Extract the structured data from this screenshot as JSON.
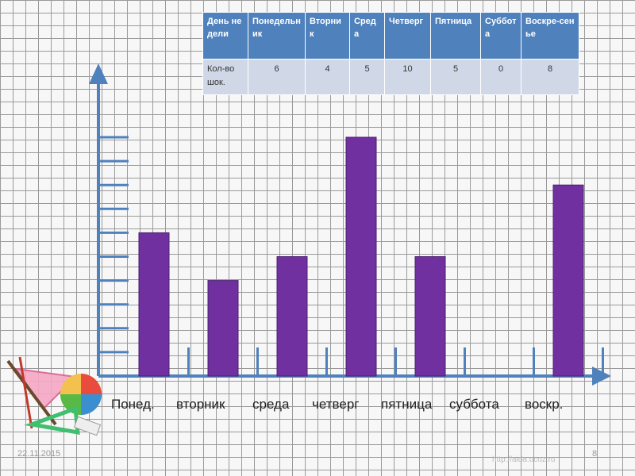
{
  "table": {
    "headers": [
      "День недели",
      "Понедельник",
      "Вторник",
      "Среда",
      "Четверг",
      "Пятница",
      "Суббота",
      "Воскре-сенье"
    ],
    "row_label": "Кол-во шок.",
    "values": [
      "6",
      "4",
      "5",
      "10",
      "5",
      "0",
      "8"
    ]
  },
  "colors": {
    "bar": "#7030a0",
    "axis": "#4f81bd",
    "table_header": "#4f81bd",
    "table_cell": "#d0d8e8"
  },
  "chart_data": {
    "type": "bar",
    "categories": [
      "Понед.",
      "вторник",
      "среда",
      "четверг",
      "пятница",
      "суббота",
      "воскр."
    ],
    "values": [
      6,
      4,
      5,
      10,
      5,
      0,
      8
    ],
    "title": "",
    "xlabel": "",
    "ylabel": "",
    "ylim": [
      0,
      10
    ],
    "grid": true
  },
  "footer": {
    "date": "22.11.2015",
    "page": "8",
    "url": "http://aida.ucoz.ru"
  },
  "tools_icon": "geometry-tools-icon"
}
